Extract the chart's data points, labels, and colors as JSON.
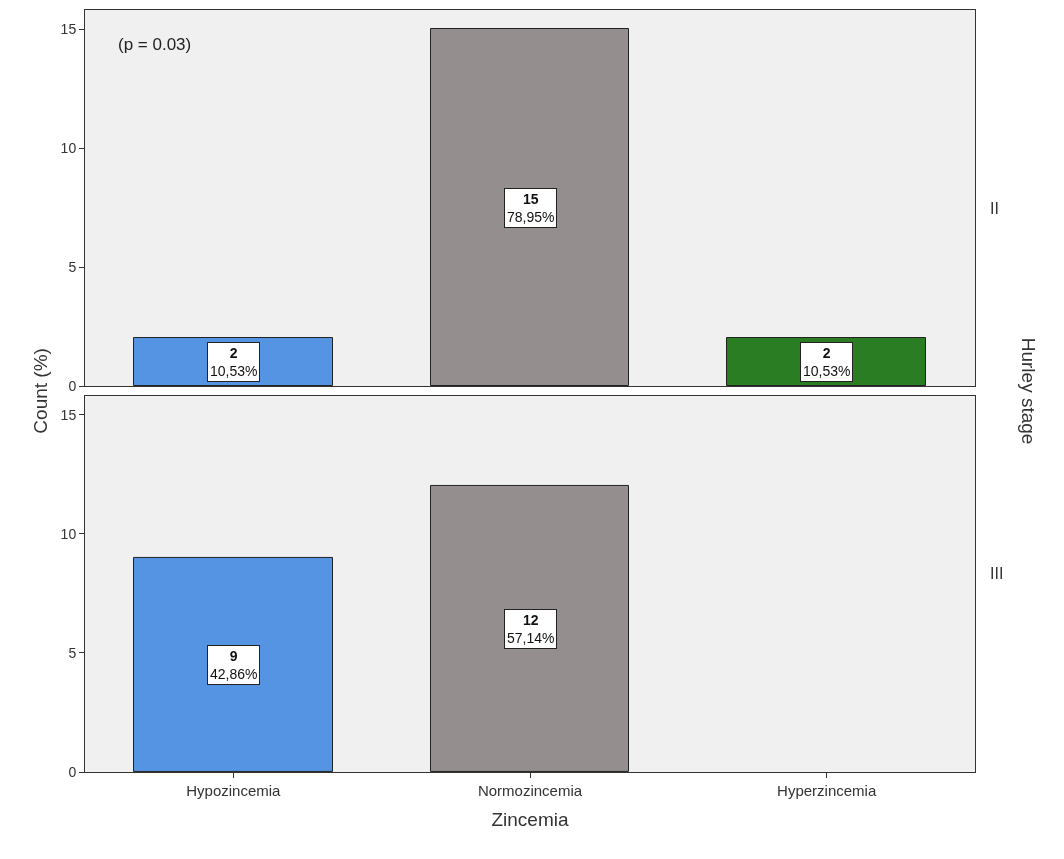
{
  "chart_data": [
    {
      "type": "bar",
      "categories": [
        null,
        null,
        null
      ],
      "values": [
        2,
        15,
        2
      ],
      "colors": [
        "#5594e2",
        "#948f8e",
        "#2b7d24"
      ],
      "ylim": [
        0,
        15.8
      ],
      "yticks": [
        0,
        5,
        10,
        15
      ],
      "tick_labels": "y",
      "ylabel": "Count (%)",
      "y2label": "II",
      "annotations": [
        "(p = 0.03)",
        "Hurley stage"
      ],
      "value_labels": [
        "2\n10,53%",
        "15\n78,95%",
        "2\n10,53%"
      ]
    },
    {
      "type": "bar",
      "categories": [
        "Hypozincemia",
        "Normozincemia",
        "Hyperzincemia"
      ],
      "values": [
        9,
        12,
        null
      ],
      "colors": [
        "#5594e2",
        "#948f8e",
        "#2b7d24"
      ],
      "ylim": [
        0,
        15.8
      ],
      "yticks": [
        0,
        5,
        10,
        15
      ],
      "xlabel": "Zincemia",
      "y2label": "III",
      "value_labels": [
        "9\n42,86%",
        "12\n57,14%",
        null
      ]
    }
  ]
}
